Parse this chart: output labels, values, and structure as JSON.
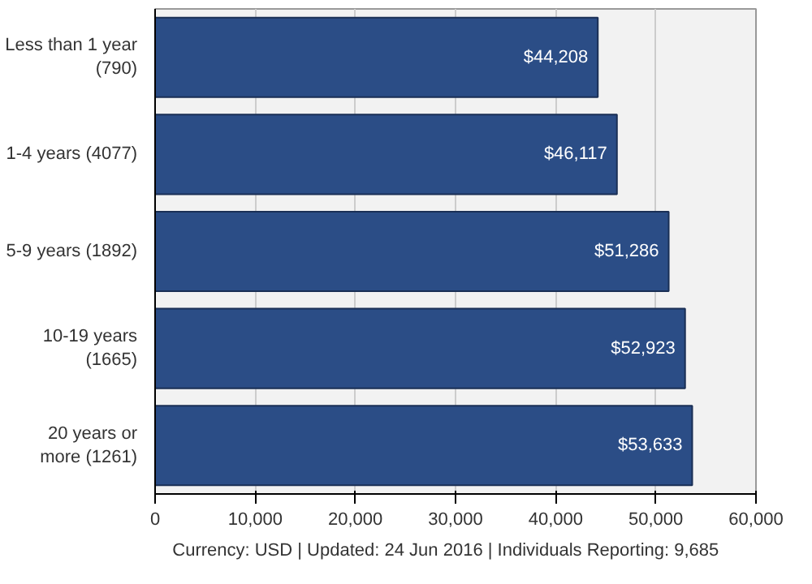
{
  "chart_data": {
    "type": "bar",
    "orientation": "horizontal",
    "categories": [
      "Less than 1 year\n(790)",
      "1-4 years (4077)",
      "5-9 years (1892)",
      "10-19 years\n(1665)",
      "20 years or\nmore (1261)"
    ],
    "values": [
      44208,
      46117,
      51286,
      52923,
      53633
    ],
    "value_labels": [
      "$44,208",
      "$46,117",
      "$51,286",
      "$52,923",
      "$53,633"
    ],
    "color": "#2b4d86",
    "xlim": [
      0,
      60000
    ],
    "xticks": [
      {
        "value": 0,
        "label": "0"
      },
      {
        "value": 10000,
        "label": "10,000"
      },
      {
        "value": 20000,
        "label": "20,000"
      },
      {
        "value": 30000,
        "label": "30,000"
      },
      {
        "value": 40000,
        "label": "40,000"
      },
      {
        "value": 50000,
        "label": "50,000"
      },
      {
        "value": 60000,
        "label": "60,000"
      }
    ],
    "grid": "x",
    "annotations": [
      "Currency: USD  |  Updated: 24 Jun 2016  |  Individuals Reporting: 9,685"
    ]
  }
}
